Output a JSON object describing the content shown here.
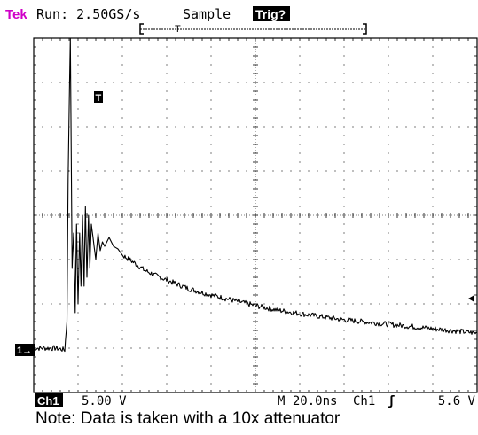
{
  "header": {
    "brand": "Tek",
    "run_status": "Run: 2.50GS/s",
    "acq_mode": "Sample",
    "trigger_status": "Trig?"
  },
  "footer": {
    "channel": "Ch1",
    "volts_per_div": "5.00 V",
    "time_per_div": "M 20.0ns",
    "trigger_source": "Ch1",
    "trigger_slope_symbol": "ʃ",
    "trigger_level": "5.6 V"
  },
  "markers": {
    "trigger_position": "T",
    "channel_ground": "1→"
  },
  "note": "Note: Data is taken with a 10x attenuator",
  "colors": {
    "brand": "#d000c8",
    "trace": "#000000",
    "grid": "#000000"
  },
  "chart_data": {
    "type": "line",
    "x_unit": "ns",
    "y_unit": "V",
    "xlim": [
      0,
      200
    ],
    "ylim": [
      -20,
      20
    ],
    "grid": true,
    "divisions": {
      "x": 10,
      "y": 8
    },
    "record_length_ns": 200,
    "trigger_time_ns": 15,
    "trigger_level_V": 5.6,
    "series": [
      {
        "x": [
          0,
          10,
          14,
          15,
          15.5,
          16.5,
          17.3,
          18,
          18.7,
          19.3,
          20,
          20.7,
          21.3,
          22,
          22.7,
          23.3,
          24,
          24.7,
          25.3,
          26,
          27,
          28,
          29,
          30,
          31,
          32,
          34,
          36,
          38,
          40,
          45,
          50,
          55,
          60,
          70,
          80,
          90,
          100,
          110,
          120,
          140,
          160,
          180,
          200
        ],
        "y": [
          -15,
          -15,
          -15.2,
          -12,
          4,
          20,
          -6,
          -2,
          -11,
          -1,
          -10,
          -2,
          -8,
          0,
          -8,
          1,
          -7,
          0,
          -6,
          -1,
          -3,
          -5,
          -2,
          -4,
          -3,
          -3.5,
          -2.5,
          -3.5,
          -3.8,
          -4.5,
          -5.3,
          -6.2,
          -6.8,
          -7.3,
          -8.3,
          -9,
          -9.6,
          -10.2,
          -10.7,
          -11.1,
          -11.8,
          -12.3,
          -12.8,
          -13.3
        ]
      }
    ]
  }
}
